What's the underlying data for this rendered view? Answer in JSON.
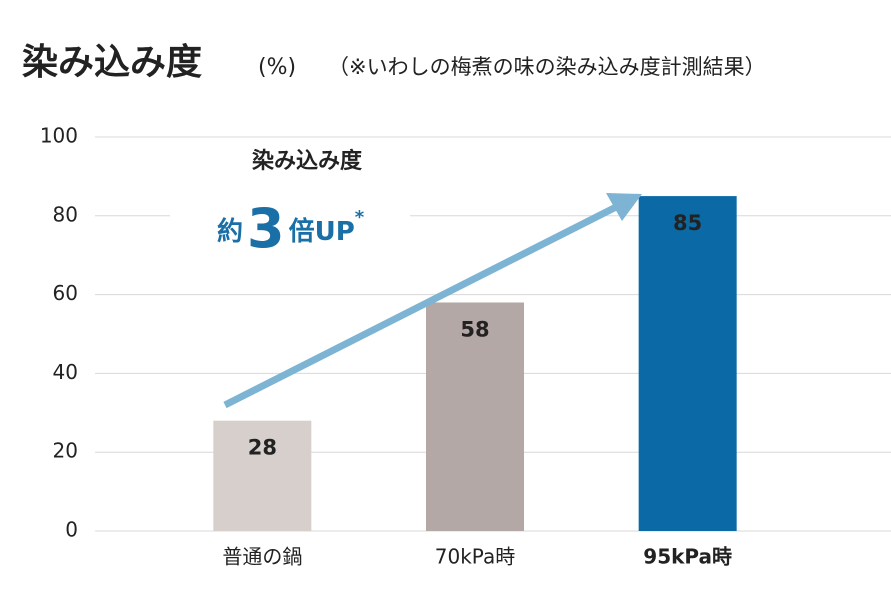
{
  "chart_data": {
    "type": "bar",
    "title": "染み込み度",
    "unit": "(%)",
    "subtitle": "（※いわしの梅煮の味の染み込み度計測結果）",
    "categories": [
      "普通の鍋",
      "70kPa時",
      "95kPa時"
    ],
    "values": [
      28,
      58,
      85
    ],
    "colors": [
      "#d6cfcb",
      "#b3a8a5",
      "#0b6aa6"
    ],
    "label_colors": [
      "#333333",
      "#333333",
      "#0b6aa6"
    ],
    "value_label_colors": [
      "#222222",
      "#222222",
      "#ffffff"
    ],
    "ylim": [
      0,
      100
    ],
    "yticks": [
      0,
      20,
      40,
      60,
      80,
      100
    ],
    "grid": true,
    "annotation": {
      "line1": "染み込み度",
      "prefix": "約",
      "number": "3",
      "suffix": "倍UP",
      "mark": "*",
      "color": "#1a6fa6",
      "arrow_color": "#7db4d4"
    }
  }
}
